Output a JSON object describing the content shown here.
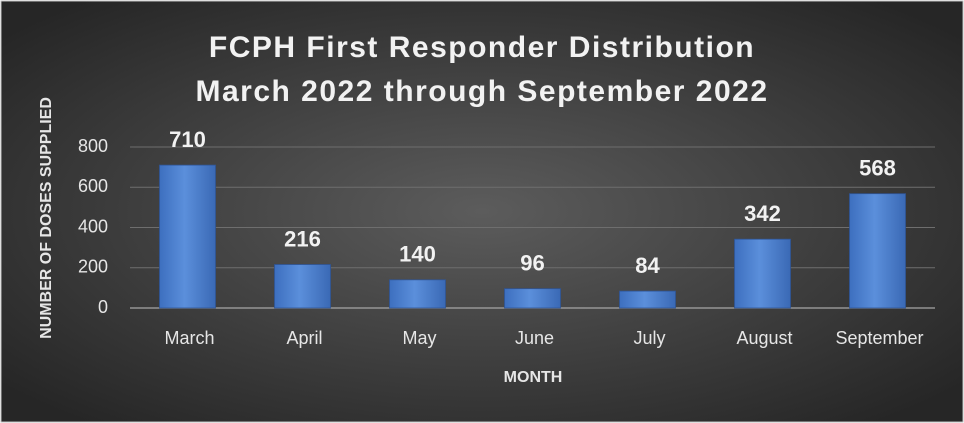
{
  "chart_data": {
    "type": "bar",
    "title": "FCPH First Responder Distribution",
    "subtitle": "March 2022 through September 2022",
    "x_label": "MONTH",
    "y_label": "NUMBER OF DOSES SUPPLIED",
    "categories": [
      "March",
      "April",
      "May",
      "June",
      "July",
      "August",
      "September"
    ],
    "values": [
      710,
      216,
      140,
      96,
      84,
      342,
      568
    ],
    "color": "#4f81c9",
    "ylim": [
      0,
      800
    ],
    "yticks": [
      0,
      200,
      400,
      600,
      800
    ],
    "grid": true
  }
}
